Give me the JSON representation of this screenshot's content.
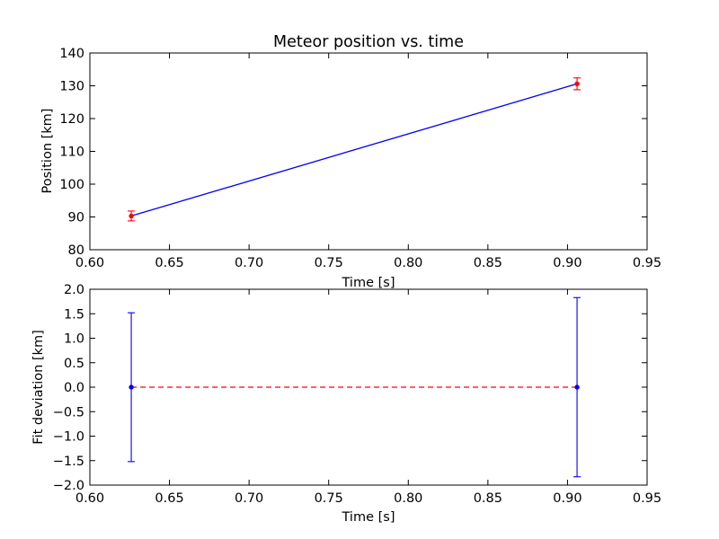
{
  "chart_data": [
    {
      "type": "line",
      "title": "Meteor position vs. time",
      "xlabel": "Time [s]",
      "ylabel": "Position [km]",
      "xlim": [
        0.6,
        0.95
      ],
      "ylim": [
        80,
        140
      ],
      "xticks": [
        "0.60",
        "0.65",
        "0.70",
        "0.75",
        "0.80",
        "0.85",
        "0.90",
        "0.95"
      ],
      "yticks": [
        "80",
        "90",
        "100",
        "110",
        "120",
        "130",
        "140"
      ],
      "grid": false,
      "series": [
        {
          "kind": "fit-line",
          "color": "#0000ff",
          "x": [
            0.626,
            0.906
          ],
          "y": [
            90.3,
            130.6
          ]
        },
        {
          "kind": "observations",
          "color": "#ff0000",
          "errorbar_color": "#ff0000",
          "x": [
            0.626,
            0.906
          ],
          "y": [
            90.3,
            130.6
          ],
          "yerr": [
            1.5,
            1.8
          ]
        }
      ]
    },
    {
      "type": "line",
      "title": "",
      "xlabel": "Time [s]",
      "ylabel": "Fit deviation [km]",
      "xlim": [
        0.6,
        0.95
      ],
      "ylim": [
        -2.0,
        2.0
      ],
      "xticks": [
        "0.60",
        "0.65",
        "0.70",
        "0.75",
        "0.80",
        "0.85",
        "0.90",
        "0.95"
      ],
      "yticks": [
        "−2.0",
        "−1.5",
        "−1.0",
        "−0.5",
        "0.0",
        "0.5",
        "1.0",
        "1.5",
        "2.0"
      ],
      "grid": false,
      "series": [
        {
          "kind": "zero-reference",
          "color": "#ff0000",
          "dashed": true,
          "x": [
            0.626,
            0.906
          ],
          "y": [
            0.0,
            0.0
          ]
        },
        {
          "kind": "residuals",
          "color": "#0000ff",
          "x": [
            0.626,
            0.906
          ],
          "y": [
            0.0,
            0.0
          ],
          "yerr": [
            1.52,
            1.83
          ]
        }
      ]
    }
  ]
}
